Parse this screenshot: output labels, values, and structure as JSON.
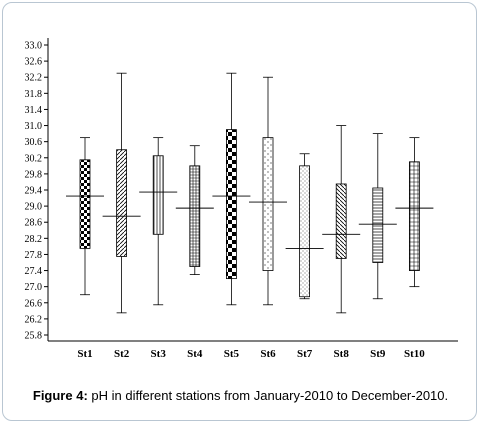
{
  "caption": {
    "label": "Figure 4:",
    "text": " pH in different stations from January-2010 to December-2010."
  },
  "chart_data": {
    "type": "boxplot",
    "title": "",
    "xlabel": "",
    "ylabel": "",
    "ylim": [
      25.8,
      33.0
    ],
    "yticks": [
      25.8,
      26.2,
      26.6,
      27.0,
      27.4,
      27.8,
      28.2,
      28.6,
      29.0,
      29.4,
      29.8,
      30.2,
      30.6,
      31.0,
      31.4,
      31.8,
      32.2,
      32.6,
      33.0
    ],
    "ytick_labels": [
      "25.8",
      "26.2",
      "26.6",
      "27.0",
      "27.4",
      "27.8",
      "28.2",
      "28.6",
      "29.0",
      "29.4",
      "29.8",
      "30.2",
      "30.6",
      "31.0",
      "31.4",
      "31.8",
      "32.2",
      "32.6",
      "33.0"
    ],
    "grid": false,
    "categories": [
      "St1",
      "St2",
      "St3",
      "St4",
      "St5",
      "St6",
      "St7",
      "St8",
      "St9",
      "St10"
    ],
    "boxes": [
      {
        "category": "St1",
        "min": 26.8,
        "q1": 27.95,
        "median": 29.25,
        "q3": 30.15,
        "max": 30.7,
        "pattern": "checker"
      },
      {
        "category": "St2",
        "min": 26.35,
        "q1": 27.75,
        "median": 28.75,
        "q3": 30.4,
        "max": 32.3,
        "pattern": "diag-left"
      },
      {
        "category": "St3",
        "min": 26.55,
        "q1": 28.3,
        "median": 29.35,
        "q3": 30.25,
        "max": 30.7,
        "pattern": "vlines"
      },
      {
        "category": "St4",
        "min": 27.3,
        "q1": 27.5,
        "median": 28.95,
        "q3": 30.0,
        "max": 30.5,
        "pattern": "grid"
      },
      {
        "category": "St5",
        "min": 26.55,
        "q1": 27.2,
        "median": 29.25,
        "q3": 30.9,
        "max": 32.3,
        "pattern": "bigchecker"
      },
      {
        "category": "St6",
        "min": 26.55,
        "q1": 27.4,
        "median": 29.1,
        "q3": 30.7,
        "max": 32.2,
        "pattern": "dashes"
      },
      {
        "category": "St7",
        "min": 26.7,
        "q1": 26.75,
        "median": 27.95,
        "q3": 30.0,
        "max": 30.3,
        "pattern": "dots"
      },
      {
        "category": "St8",
        "min": 26.35,
        "q1": 27.7,
        "median": 28.3,
        "q3": 29.55,
        "max": 31.0,
        "pattern": "diag-right"
      },
      {
        "category": "St9",
        "min": 26.7,
        "q1": 27.6,
        "median": 28.55,
        "q3": 29.45,
        "max": 30.8,
        "pattern": "hlines"
      },
      {
        "category": "St10",
        "min": 27.0,
        "q1": 27.4,
        "median": 28.95,
        "q3": 30.1,
        "max": 30.7,
        "pattern": "crosshatch"
      }
    ]
  }
}
